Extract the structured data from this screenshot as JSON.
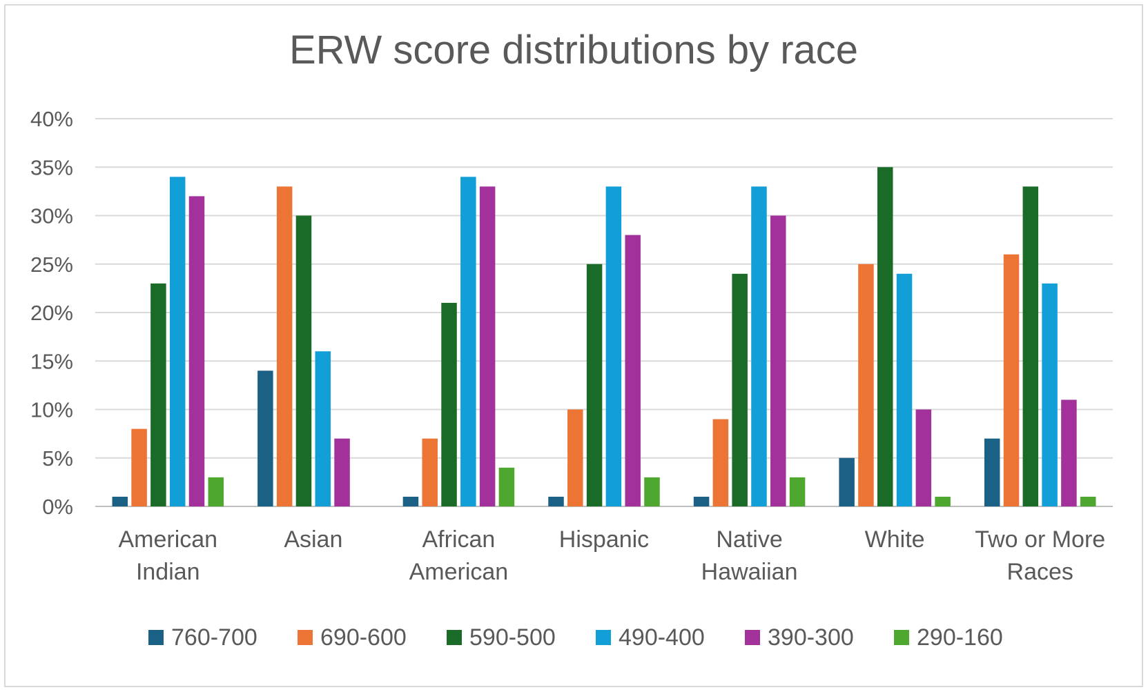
{
  "chart_data": {
    "type": "bar",
    "title": "ERW score distributions by race",
    "xlabel": "",
    "ylabel": "",
    "ylim": [
      0,
      40
    ],
    "yticks": [
      "0%",
      "5%",
      "10%",
      "15%",
      "20%",
      "25%",
      "30%",
      "35%",
      "40%"
    ],
    "grid": true,
    "legend_position": "bottom",
    "categories": [
      [
        "American",
        "Indian"
      ],
      [
        "Asian"
      ],
      [
        "African",
        "American"
      ],
      [
        "Hispanic"
      ],
      [
        "Native",
        "Hawaiian"
      ],
      [
        "White"
      ],
      [
        "Two or More",
        "Races"
      ]
    ],
    "series": [
      {
        "name": "760-700",
        "color": "#1b6185",
        "values": [
          1,
          14,
          1,
          1,
          1,
          5,
          7
        ]
      },
      {
        "name": "690-600",
        "color": "#ec7434",
        "values": [
          8,
          33,
          7,
          10,
          9,
          25,
          26
        ]
      },
      {
        "name": "590-500",
        "color": "#1b6b28",
        "values": [
          23,
          30,
          21,
          25,
          24,
          35,
          33
        ]
      },
      {
        "name": "490-400",
        "color": "#129fd8",
        "values": [
          34,
          16,
          34,
          33,
          33,
          24,
          23
        ]
      },
      {
        "name": "390-300",
        "color": "#a3319b",
        "values": [
          32,
          7,
          33,
          28,
          30,
          10,
          11
        ]
      },
      {
        "name": "290-160",
        "color": "#4ea72e",
        "values": [
          3,
          0,
          4,
          3,
          3,
          1,
          1
        ]
      }
    ]
  }
}
